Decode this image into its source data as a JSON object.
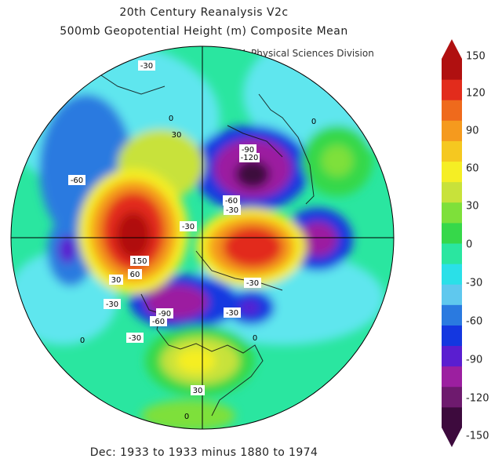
{
  "title": {
    "line1": "20th Century Reanalysis V2c",
    "line2": "500mb Geopotential Height (m) Composite Mean"
  },
  "credit": "NOAA/ESRL Physical Sciences Division",
  "footer": "Dec: 1933 to 1933 minus 1880 to 1974",
  "colorbar": {
    "labels": [
      "150",
      "120",
      "90",
      "60",
      "30",
      "0",
      "-30",
      "-60",
      "-90",
      "-120",
      "-150"
    ],
    "colors": [
      "#3d0a3d",
      "#6e1a6e",
      "#9c1fa0",
      "#5a1ed0",
      "#1437e0",
      "#2a7ae0",
      "#5fc8ee",
      "#2ae0e8",
      "#2ae6a0",
      "#36d84a",
      "#7ee03a",
      "#c8e23a",
      "#f5ee24",
      "#f5c820",
      "#f59a1e",
      "#ef6a1c",
      "#e22c1c",
      "#b01010"
    ]
  },
  "contour_labels": [
    "-30",
    "0",
    "30",
    "-60",
    "-90",
    "-120",
    "-60",
    "0",
    "-30",
    "150",
    "30",
    "60",
    "-30",
    "-90",
    "-60",
    "-30",
    "-30",
    "-30",
    "0",
    "0",
    "30",
    "0",
    "-30"
  ],
  "map": {
    "projection": "north-polar-stereographic",
    "features": [
      "positive-anomaly-north-atlantic",
      "positive-anomaly-siberia",
      "negative-anomaly-arctic-ocean",
      "negative-anomaly-east-asia",
      "negative-anomaly-north-pacific"
    ]
  }
}
